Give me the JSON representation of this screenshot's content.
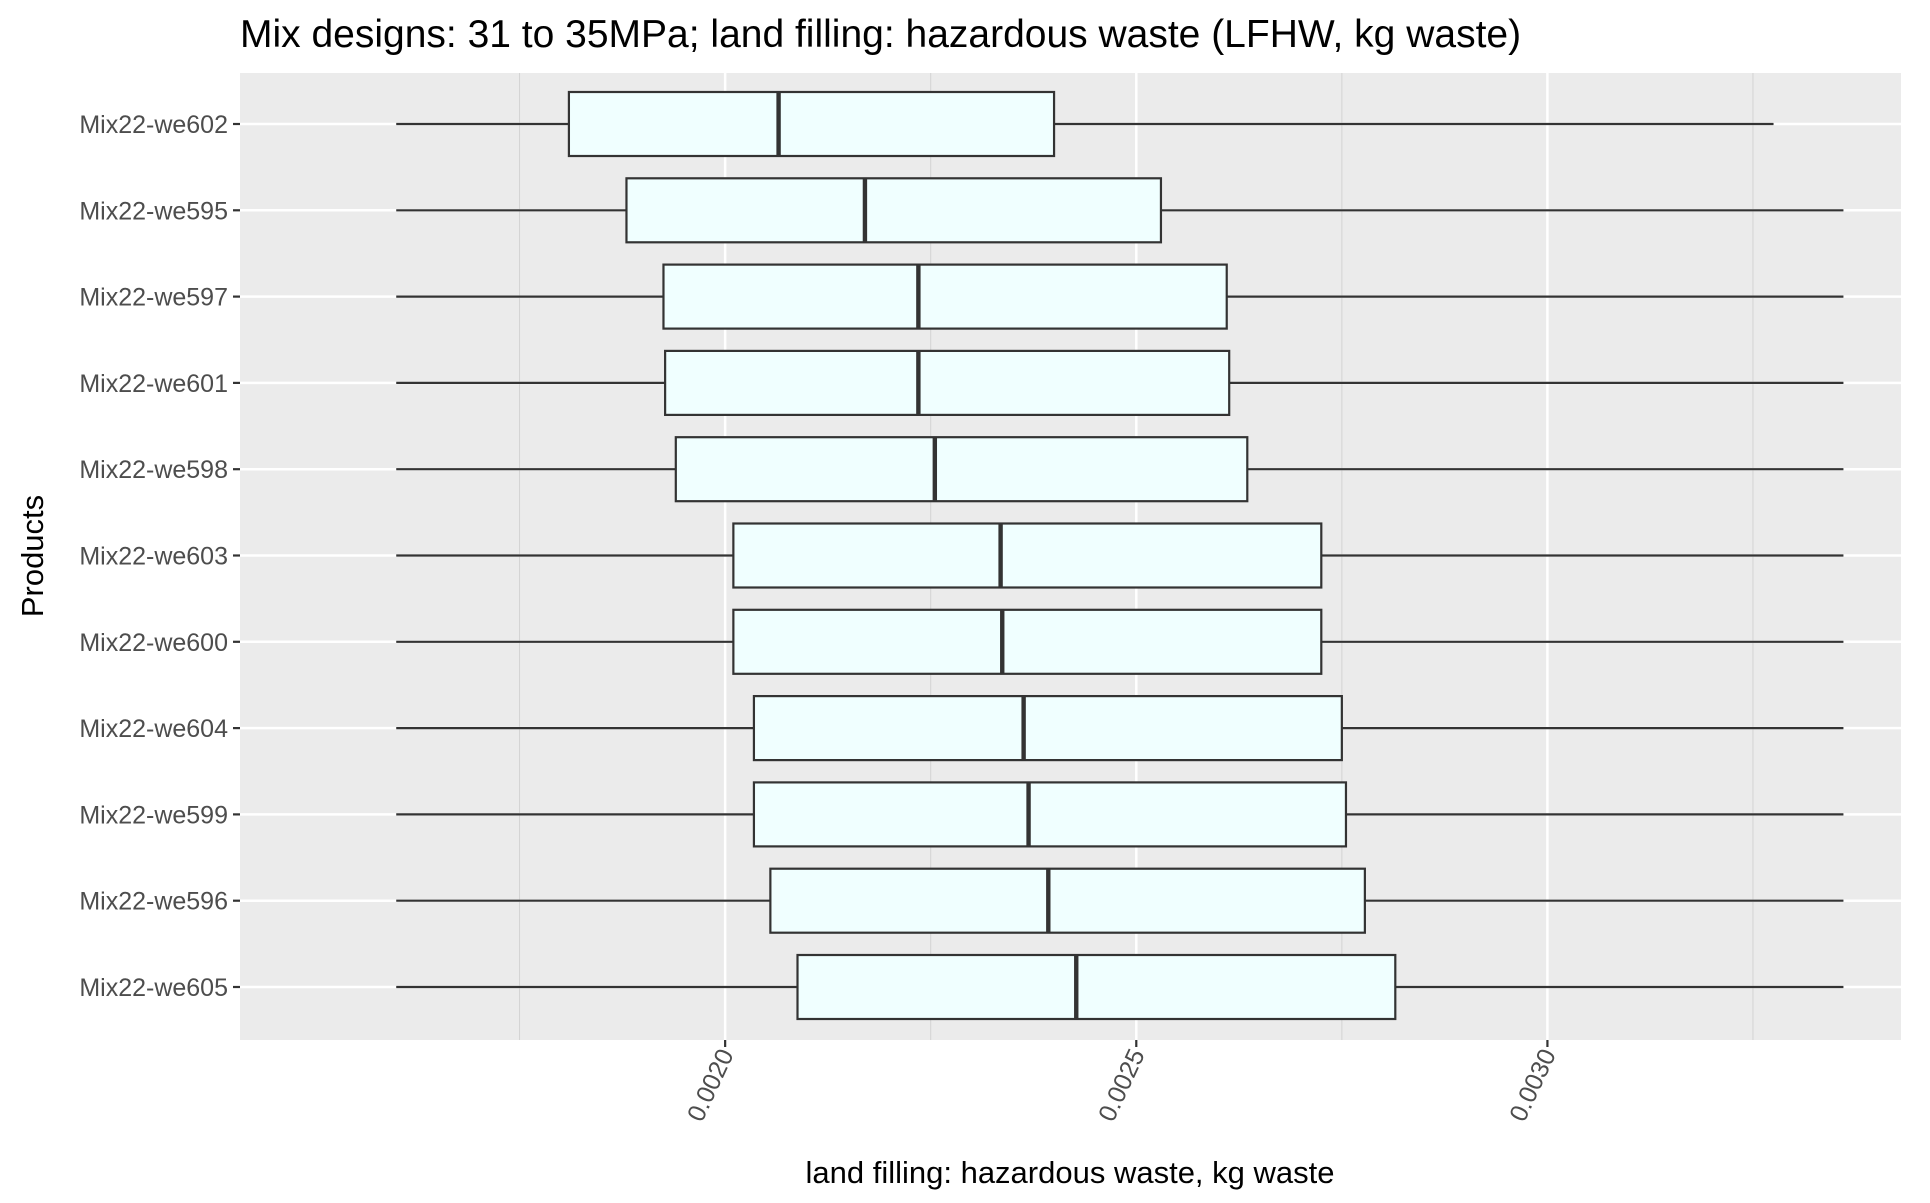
{
  "chart_data": {
    "type": "boxplot",
    "orientation": "horizontal",
    "title": "Mix designs: 31 to 35MPa; land filling: hazardous waste (LFHW, kg waste)",
    "xlabel": "land filling: hazardous waste, kg waste",
    "ylabel": "Products",
    "xlim": [
      0.00141,
      0.00343
    ],
    "x_ticks": [
      0.002,
      0.0025,
      0.003
    ],
    "x_tick_labels": [
      "0.0020",
      "0.0025",
      "0.0030"
    ],
    "x_minor_ticks": [
      0.00175,
      0.00225,
      0.00275,
      0.00325
    ],
    "grid": true,
    "colors": {
      "panel_background": "#ebebeb",
      "major_grid": "#ffffff",
      "minor_grid": "#d3d3d3",
      "box_fill": "#f0ffff",
      "box_stroke": "#333333",
      "median_stroke": "#333333",
      "whisker_stroke": "#333333"
    },
    "categories": [
      "Mix22-we602",
      "Mix22-we595",
      "Mix22-we597",
      "Mix22-we601",
      "Mix22-we598",
      "Mix22-we603",
      "Mix22-we600",
      "Mix22-we604",
      "Mix22-we599",
      "Mix22-we596",
      "Mix22-we605"
    ],
    "boxes": [
      {
        "product": "Mix22-we602",
        "min": 0.0016,
        "q1": 0.00181,
        "median": 0.002065,
        "q3": 0.0024,
        "max": 0.003275
      },
      {
        "product": "Mix22-we595",
        "min": 0.0016,
        "q1": 0.00188,
        "median": 0.00217,
        "q3": 0.00253,
        "max": 0.00336
      },
      {
        "product": "Mix22-we597",
        "min": 0.0016,
        "q1": 0.001925,
        "median": 0.002235,
        "q3": 0.00261,
        "max": 0.00336
      },
      {
        "product": "Mix22-we601",
        "min": 0.0016,
        "q1": 0.001927,
        "median": 0.002235,
        "q3": 0.002613,
        "max": 0.00336
      },
      {
        "product": "Mix22-we598",
        "min": 0.0016,
        "q1": 0.00194,
        "median": 0.002255,
        "q3": 0.002635,
        "max": 0.00336
      },
      {
        "product": "Mix22-we603",
        "min": 0.0016,
        "q1": 0.00201,
        "median": 0.002335,
        "q3": 0.002725,
        "max": 0.00336
      },
      {
        "product": "Mix22-we600",
        "min": 0.0016,
        "q1": 0.00201,
        "median": 0.002337,
        "q3": 0.002725,
        "max": 0.00336
      },
      {
        "product": "Mix22-we604",
        "min": 0.0016,
        "q1": 0.002035,
        "median": 0.002363,
        "q3": 0.00275,
        "max": 0.00336
      },
      {
        "product": "Mix22-we599",
        "min": 0.0016,
        "q1": 0.002035,
        "median": 0.002369,
        "q3": 0.002755,
        "max": 0.00336
      },
      {
        "product": "Mix22-we596",
        "min": 0.0016,
        "q1": 0.002055,
        "median": 0.002393,
        "q3": 0.002778,
        "max": 0.00336
      },
      {
        "product": "Mix22-we605",
        "min": 0.0016,
        "q1": 0.002088,
        "median": 0.002427,
        "q3": 0.002815,
        "max": 0.00336
      }
    ]
  }
}
